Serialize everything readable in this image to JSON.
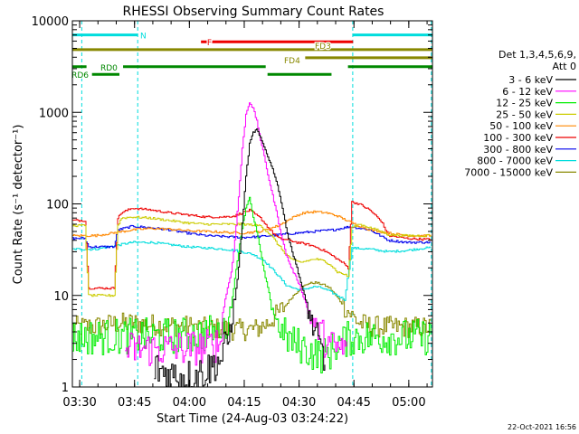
{
  "chart_data": {
    "type": "line",
    "title": "RHESSI Observing Summary Count Rates",
    "xlabel": "Start Time (24-Aug-03 03:24:22)",
    "ylabel": "Count Rate (s⁻¹ detector⁻¹)",
    "yscale": "log",
    "ylim": [
      1,
      10000
    ],
    "xlim_minutes": [
      3.633,
      102.1
    ],
    "x_ticks": [
      {
        "label": "03:30",
        "minute": 5.633
      },
      {
        "label": "03:45",
        "minute": 20.633
      },
      {
        "label": "04:00",
        "minute": 35.633
      },
      {
        "label": "04:15",
        "minute": 50.633
      },
      {
        "label": "04:30",
        "minute": 65.633
      },
      {
        "label": "04:45",
        "minute": 80.633
      },
      {
        "label": "05:00",
        "minute": 95.633
      }
    ],
    "y_ticks": [
      {
        "label": "1",
        "value": 1
      },
      {
        "label": "10",
        "value": 10
      },
      {
        "label": "100",
        "value": 100
      },
      {
        "label": "1000",
        "value": 1000
      },
      {
        "label": "10000",
        "value": 10000
      }
    ],
    "legend_header": [
      "Det 1,3,4,5,6,9,",
      "Att 0"
    ],
    "legend_position": "right",
    "series": [
      {
        "name": "3 - 6 keV",
        "color": "#000000",
        "x": [
          3.6,
          7.0,
          8.0,
          15.0,
          16.0,
          20.0,
          26.0,
          30.0,
          35.0,
          40.0,
          44.0,
          46.0,
          47.0,
          48.0,
          49.0,
          50.0,
          51.0,
          52.0,
          53.0,
          54.0,
          55.0,
          56.0,
          57.0,
          58.0,
          59.0,
          60.0,
          61.0,
          62.0,
          63.0,
          64.0,
          65.0,
          66.0,
          67.0,
          68.0,
          69.0,
          70.0,
          72.0,
          73.0
        ],
        "y": [
          null,
          null,
          null,
          null,
          null,
          null,
          1.6,
          1.4,
          1.3,
          1.5,
          2.0,
          3.0,
          5.0,
          9.0,
          20,
          60,
          200,
          450,
          600,
          650,
          520,
          420,
          330,
          260,
          200,
          140,
          90,
          55,
          38,
          27,
          20,
          14,
          10,
          7,
          5,
          3.5,
          2.2,
          1.2
        ]
      },
      {
        "name": "6 - 12 keV",
        "color": "#ff00ff",
        "x": [
          18.0,
          25.0,
          30.0,
          35.0,
          40.0,
          44.0,
          45.0,
          46.0,
          47.0,
          48.0,
          49.0,
          50.0,
          51.0,
          52.0,
          53.0,
          54.0,
          55.0,
          56.0,
          57.0,
          58.0,
          59.0,
          60.0,
          61.0,
          62.0,
          63.0,
          64.0,
          65.0,
          66.0,
          67.0,
          68.0,
          69.0,
          70.0,
          72.0,
          74.0,
          76.0,
          79.0,
          80.0
        ],
        "y": [
          2.6,
          2.6,
          2.6,
          2.7,
          2.7,
          3.0,
          8,
          12,
          18,
          40,
          120,
          400,
          950,
          1300,
          1100,
          800,
          500,
          330,
          210,
          140,
          95,
          62,
          40,
          28,
          22,
          18,
          15,
          12,
          9,
          7,
          5.5,
          4.5,
          3.5,
          2.8,
          2.6,
          2.6,
          null
        ]
      },
      {
        "name": "12 - 25 keV",
        "color": "#00ee00",
        "x": [
          3.6,
          10.0,
          20.0,
          30.0,
          35.0,
          40.0,
          46.0,
          47.0,
          48.0,
          49.0,
          50.0,
          51.0,
          52.0,
          53.0,
          54.0,
          55.0,
          56.0,
          57.0,
          58.0,
          59.0,
          60.0,
          62.0,
          64.0,
          66.0,
          68.0,
          70.0,
          72.0,
          74.0,
          76.0,
          78.0,
          80.0,
          90.0,
          102.0
        ],
        "y": [
          3.5,
          3.5,
          3.6,
          3.6,
          3.7,
          3.8,
          4.5,
          8,
          15,
          30,
          55,
          90,
          120,
          70,
          50,
          30,
          18,
          12,
          8,
          6,
          4.5,
          3.5,
          3.0,
          2.8,
          2.5,
          2.3,
          2.2,
          2.4,
          3,
          3.2,
          3.5,
          3.5,
          3.5
        ]
      },
      {
        "name": "25 - 50 keV",
        "color": "#cccc00",
        "x": [
          3.6,
          7.0,
          8.0,
          9.0,
          15.0,
          16.0,
          17.0,
          20.0,
          25.0,
          30.0,
          35.0,
          40.0,
          45.0,
          50.0,
          55.0,
          58.0,
          60.0,
          62.0,
          64.0,
          66.0,
          68.0,
          70.0,
          72.0,
          74.0,
          76.0,
          78.0,
          79.0,
          80.0,
          82.0,
          85.0,
          88.0,
          90.0,
          95.0,
          100.0,
          102.0
        ],
        "y": [
          58,
          58,
          10,
          10,
          10,
          58,
          70,
          72,
          70,
          66,
          62,
          60,
          60,
          60,
          58,
          45,
          35,
          28,
          24,
          23,
          24,
          25,
          24,
          22,
          18,
          17,
          16,
          55,
          60,
          55,
          50,
          46,
          45,
          45,
          46
        ]
      },
      {
        "name": "50 - 100 keV",
        "color": "#ff8800",
        "x": [
          3.6,
          10.0,
          20.0,
          25.0,
          30.0,
          35.0,
          40.0,
          45.0,
          50.0,
          55.0,
          60.0,
          63.0,
          65.0,
          67.0,
          70.0,
          73.0,
          76.0,
          80.0,
          85.0,
          90.0,
          95.0,
          102.0
        ],
        "y": [
          45,
          45,
          52,
          54,
          53,
          51,
          50,
          49,
          48,
          50,
          58,
          68,
          75,
          80,
          82,
          80,
          74,
          62,
          52,
          48,
          45,
          45
        ]
      },
      {
        "name": "100 - 300 keV",
        "color": "#ee0000",
        "x": [
          3.6,
          7.0,
          8.0,
          9.0,
          15.0,
          16.0,
          17.0,
          20.0,
          25.0,
          30.0,
          35.0,
          40.0,
          45.0,
          48.0,
          50.0,
          52.0,
          55.0,
          58.0,
          60.0,
          63.0,
          65.0,
          68.0,
          70.0,
          73.0,
          76.0,
          78.0,
          79.0,
          80.0,
          82.0,
          85.0,
          88.0,
          90.0,
          95.0,
          100.0,
          102.0
        ],
        "y": [
          66,
          66,
          12,
          12,
          12,
          70,
          80,
          90,
          86,
          80,
          76,
          72,
          72,
          74,
          80,
          85,
          70,
          50,
          42,
          40,
          38,
          36,
          34,
          30,
          25,
          22,
          20,
          105,
          100,
          85,
          65,
          45,
          42,
          41,
          41
        ]
      },
      {
        "name": "300 - 800 keV",
        "color": "#0000ee",
        "x": [
          3.6,
          7.0,
          8.0,
          15.0,
          16.0,
          20.0,
          25.0,
          30.0,
          35.0,
          40.0,
          45.0,
          50.0,
          55.0,
          60.0,
          65.0,
          70.0,
          75.0,
          78.0,
          79.0,
          80.0,
          85.0,
          90.0,
          95.0,
          100.0,
          102.0
        ],
        "y": [
          42,
          42,
          34,
          34,
          52,
          57,
          55,
          52,
          48,
          45,
          44,
          43,
          44,
          46,
          48,
          50,
          52,
          55,
          56,
          56,
          52,
          40,
          38,
          38,
          38
        ]
      },
      {
        "name": "800 - 7000 keV",
        "color": "#00dddd",
        "x": [
          3.6,
          10.0,
          20.0,
          25.0,
          30.0,
          35.0,
          40.0,
          45.0,
          48.0,
          50.0,
          53.0,
          56.0,
          59.0,
          62.0,
          64.0,
          66.0,
          68.0,
          70.0,
          72.0,
          74.0,
          76.0,
          78.0,
          80.0,
          85.0,
          90.0,
          95.0,
          100.0,
          102.0
        ],
        "y": [
          32,
          32,
          38,
          38,
          36,
          34,
          33,
          32,
          31,
          30,
          28,
          24,
          18,
          13,
          12,
          11.5,
          12,
          12.5,
          12,
          11,
          10,
          9,
          33,
          32,
          30,
          31,
          33,
          33
        ]
      },
      {
        "name": "7000 - 15000 keV",
        "color": "#888800",
        "x": [
          3.6,
          10.0,
          15.0,
          20.0,
          25.0,
          30.0,
          35.0,
          40.0,
          45.0,
          50.0,
          54.0,
          57.0,
          60.0,
          62.0,
          64.0,
          66.0,
          68.0,
          70.0,
          72.0,
          74.0,
          76.0,
          78.0,
          80.0,
          82.0,
          85.0,
          90.0,
          95.0,
          100.0,
          102.0
        ],
        "y": [
          4.5,
          4.6,
          4.9,
          5.0,
          4.8,
          4.7,
          4.6,
          4.4,
          4.3,
          4.2,
          4.3,
          5.0,
          6.5,
          8,
          10,
          12,
          13.5,
          13.8,
          13.2,
          12,
          9.5,
          7.5,
          6,
          5,
          4.6,
          4.5,
          4.5,
          4.5,
          4.5
        ]
      }
    ],
    "state_bars": [
      {
        "label": "N",
        "color": "#00dddd",
        "level_value": 7000,
        "segments": [
          [
            3.6,
            21.5
          ],
          [
            80.3,
            102.1
          ]
        ]
      },
      {
        "label": "F",
        "color": "#ee0000",
        "level_value": 5900,
        "segments": [
          [
            38.8,
            80.4
          ]
        ]
      },
      {
        "label": "FD3",
        "color": "#888800",
        "level_value": 4850,
        "segments": [
          [
            3.6,
            102.1
          ]
        ]
      },
      {
        "label": "FD4",
        "color": "#888800",
        "level_value": 3950,
        "segments": [
          [
            67.3,
            102.1
          ]
        ]
      },
      {
        "label": "RD0",
        "color": "#008800",
        "level_value": 3150,
        "segments": [
          [
            3.6,
            7.5
          ],
          [
            17.5,
            56.5
          ],
          [
            79.0,
            102.1
          ]
        ]
      },
      {
        "label": "RD6",
        "color": "#008800",
        "level_value": 2600,
        "segments": [
          [
            9.0,
            16.5
          ],
          [
            57.0,
            74.5
          ]
        ]
      }
    ],
    "vertical_markers_minutes": [
      6.2,
      21.5,
      80.3,
      101.8
    ],
    "timestamp": "22-Oct-2021 16:56"
  }
}
